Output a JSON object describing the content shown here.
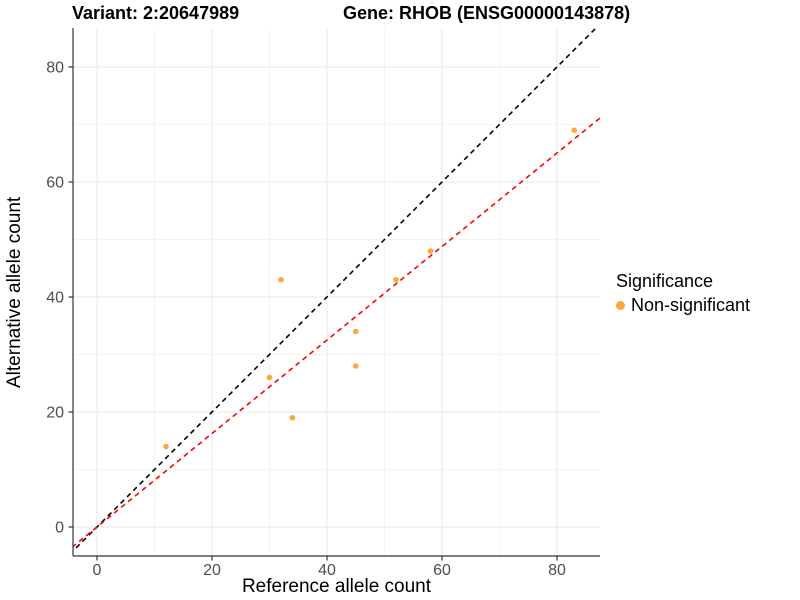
{
  "chart_data": {
    "type": "scatter",
    "title_left": "Variant: 2:20647989",
    "title_right": "Gene: RHOB (ENSG00000143878)",
    "xlabel": "Reference allele count",
    "ylabel": "Alternative allele count",
    "xlim": [
      -4.17,
      87.48
    ],
    "ylim": [
      -5.04,
      86.78
    ],
    "x_ticks": [
      0,
      20,
      40,
      60,
      80
    ],
    "y_ticks": [
      0,
      20,
      40,
      60,
      80
    ],
    "x_minor": [
      10,
      30,
      50,
      70
    ],
    "y_minor": [
      10,
      30,
      50,
      70
    ],
    "points": [
      {
        "x": 12,
        "y": 14
      },
      {
        "x": 30,
        "y": 26
      },
      {
        "x": 32,
        "y": 43
      },
      {
        "x": 34,
        "y": 19
      },
      {
        "x": 45,
        "y": 28
      },
      {
        "x": 45,
        "y": 34
      },
      {
        "x": 52,
        "y": 43
      },
      {
        "x": 58,
        "y": 48
      },
      {
        "x": 83,
        "y": 69
      }
    ],
    "point_color": "#FCA63C",
    "identity_line": {
      "slope": 1,
      "intercept": 0,
      "color": "#000000",
      "style": "dashed"
    },
    "fit_line": {
      "slope": 0.813,
      "intercept": 0,
      "color": "#FF0000",
      "style": "dashed"
    },
    "legend": {
      "title": "Significance",
      "items": [
        {
          "label": "Non-significant",
          "color": "#FCA63C"
        }
      ]
    },
    "grid": true,
    "colors": {
      "grid_major": "#E9E9E9",
      "grid_minor": "#F4F4F4",
      "axis_line": "#333333",
      "tick_label": "#4D4D4D"
    }
  }
}
